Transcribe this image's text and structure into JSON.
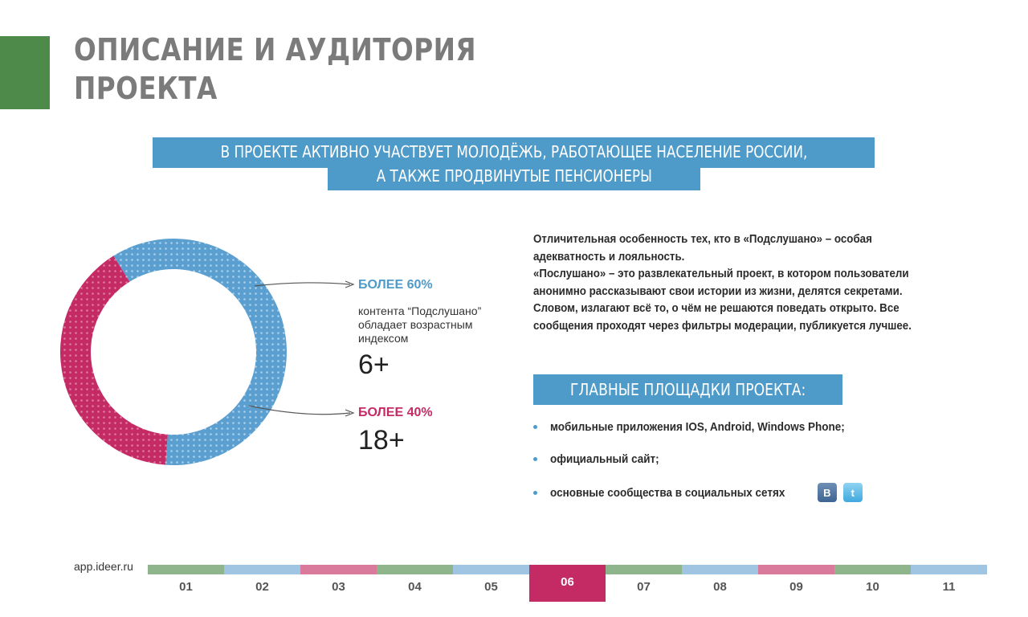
{
  "header": {
    "title_line1": "ОПИСАНИЕ И АУДИТОРИЯ",
    "title_line2": "ПРОЕКТА",
    "accent_color": "#4e8a4a"
  },
  "banner": {
    "line1": "В ПРОЕКТЕ АКТИВНО УЧАСТВУЕТ МОЛОДЁЖЬ, РАБОТАЮЩЕЕ НАСЕЛЕНИЕ РОССИИ,",
    "line2": "А ТАКЖЕ ПРОДВИНУТЫЕ ПЕНСИОНЕРЫ",
    "color": "#4e9ac8"
  },
  "chart_data": {
    "type": "pie",
    "style": "donut",
    "categories": [
      "6+",
      "18+"
    ],
    "values": [
      60,
      40
    ],
    "colors": [
      "#5a9fcf",
      "#c42a64"
    ],
    "labels": [
      "БОЛЕЕ 60%",
      "БОЛЕЕ 40%"
    ],
    "annotation": "контента “Подслушано” обладает возрастным индексом"
  },
  "stats": [
    {
      "label": "БОЛЕЕ 60%",
      "description": "контента “Подслушано” обладает возрастным индексом",
      "value": "6+"
    },
    {
      "label": "БОЛЕЕ 40%",
      "value": "18+"
    }
  ],
  "description": {
    "lines": [
      "Отличительная особенность тех, кто в «Подслушано» – особая",
      "адекватность и лояльность.",
      "«Послушано» – это развлекательный проект, в котором пользователи",
      "анонимно рассказывают свои истории из жизни, делятся секретами.",
      "Словом, излагают всё то, о чём не решаются поведать открыто. Все",
      "сообщения проходят через фильтры модерации, публикуется лучшее."
    ]
  },
  "platforms": {
    "header": "ГЛАВНЫЕ ПЛОЩАДКИ ПРОЕКТА:",
    "items": [
      "мобильные приложения  IOS, Android, Windows Phone;",
      "официальный сайт;",
      "основные сообщества в социальных сетях"
    ],
    "icons": [
      "vk-icon",
      "twitter-icon"
    ],
    "vk_glyph": "B",
    "twitter_glyph": "t"
  },
  "footer": {
    "url": "app.ideer.ru",
    "pages": [
      {
        "label": "01",
        "color": "#8fb58d"
      },
      {
        "label": "02",
        "color": "#9fc5e2"
      },
      {
        "label": "03",
        "color": "#d9799c"
      },
      {
        "label": "04",
        "color": "#8fb58d"
      },
      {
        "label": "05",
        "color": "#9fc5e2"
      },
      {
        "label": "06",
        "color": "#c42a64",
        "active": true
      },
      {
        "label": "07",
        "color": "#8fb58d"
      },
      {
        "label": "08",
        "color": "#9fc5e2"
      },
      {
        "label": "09",
        "color": "#d9799c"
      },
      {
        "label": "10",
        "color": "#8fb58d"
      },
      {
        "label": "11",
        "color": "#9fc5e2"
      }
    ]
  }
}
